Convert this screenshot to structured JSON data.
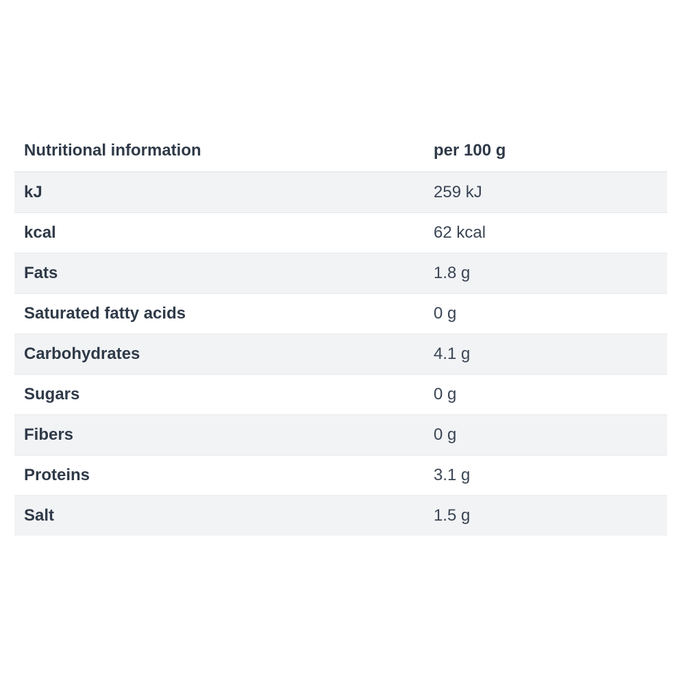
{
  "table": {
    "header": {
      "label": "Nutritional information",
      "value": "per 100 g"
    },
    "rows": [
      {
        "label": "kJ",
        "value": "259 kJ"
      },
      {
        "label": "kcal",
        "value": "62 kcal"
      },
      {
        "label": "Fats",
        "value": "1.8 g"
      },
      {
        "label": "Saturated fatty acids",
        "value": "0 g"
      },
      {
        "label": "Carbohydrates",
        "value": "4.1 g"
      },
      {
        "label": "Sugars",
        "value": "0 g"
      },
      {
        "label": "Fibers",
        "value": "0 g"
      },
      {
        "label": "Proteins",
        "value": "3.1 g"
      },
      {
        "label": "Salt",
        "value": "1.5 g"
      }
    ]
  }
}
